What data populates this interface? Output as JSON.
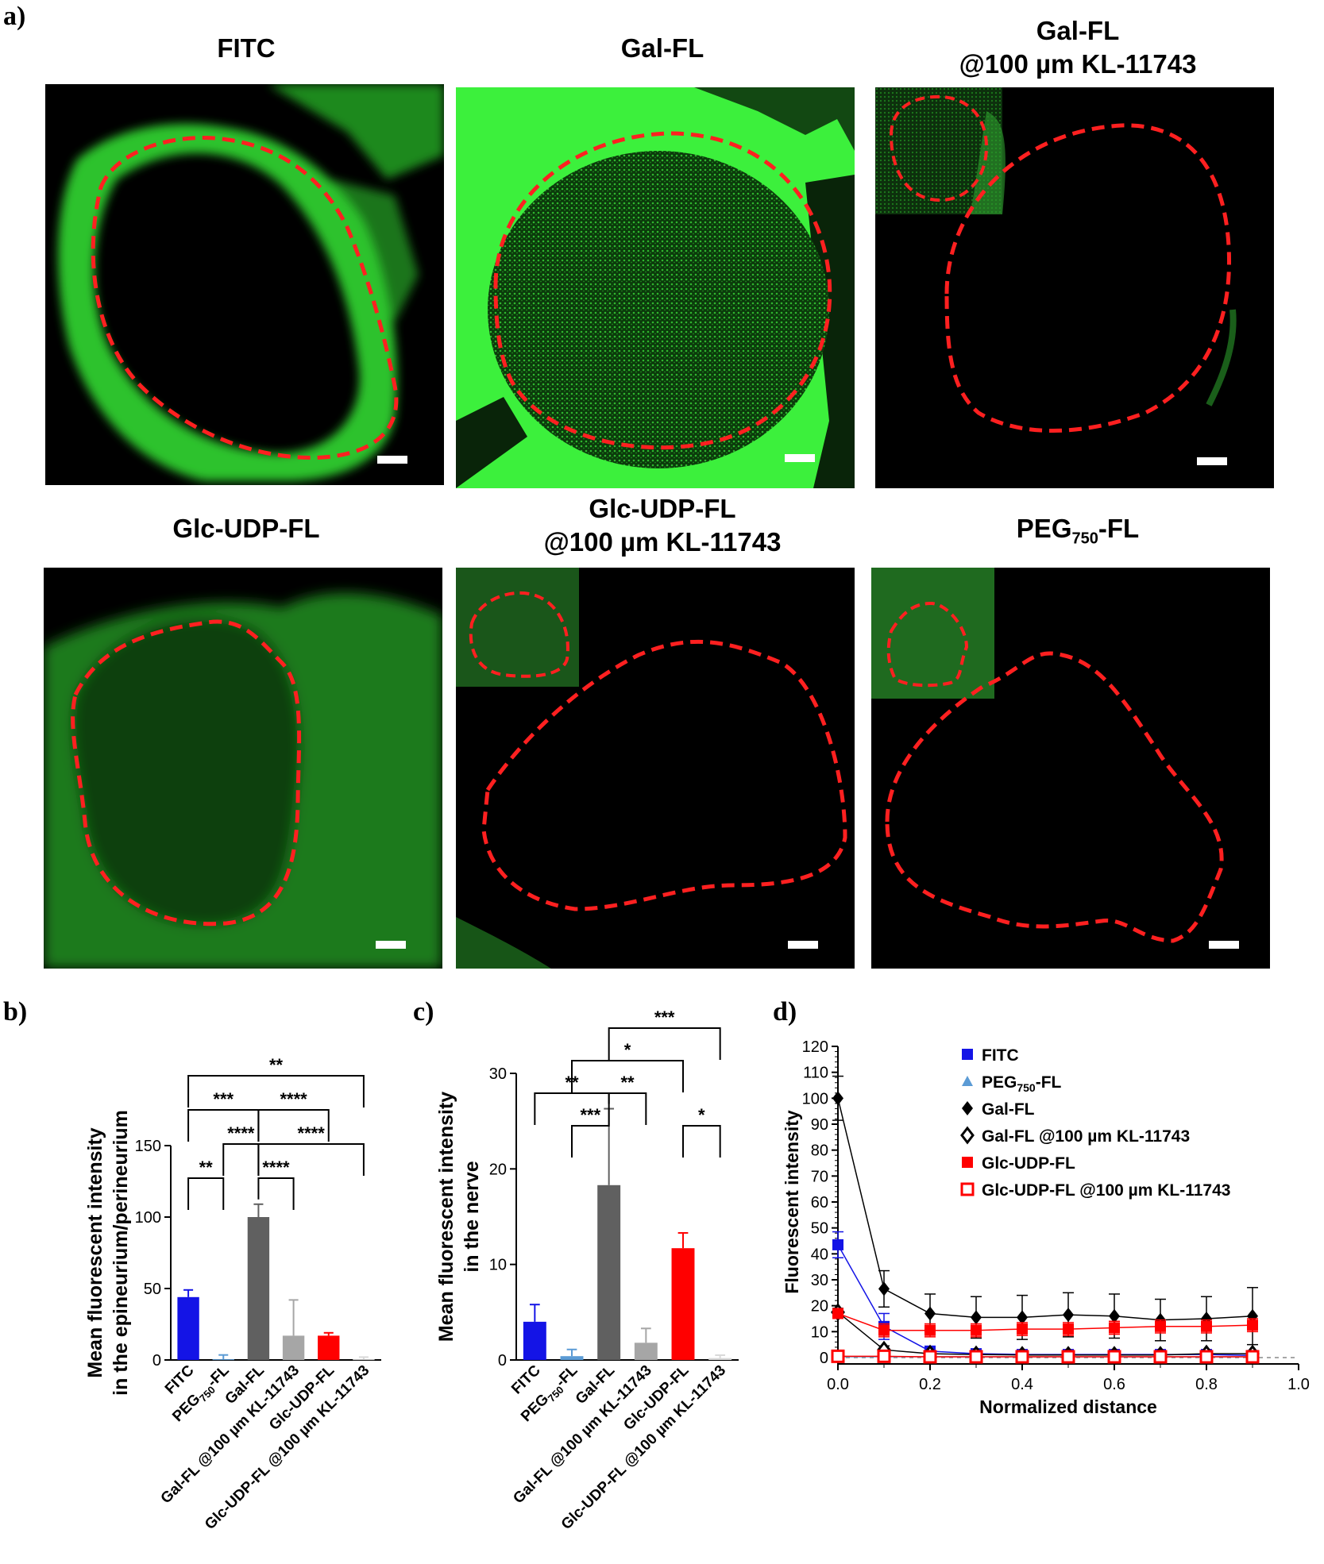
{
  "panels": {
    "a": "a)",
    "b": "b)",
    "c": "c)",
    "d": "d)"
  },
  "micrographs": [
    {
      "title1": "FITC",
      "title2": ""
    },
    {
      "title1": "Gal-FL",
      "title2": ""
    },
    {
      "title1": "Gal-FL",
      "title2": "@100 µm KL-11743"
    },
    {
      "title1": "Glc-UDP-FL",
      "title2": ""
    },
    {
      "title1": "Glc-UDP-FL",
      "title2": "@100 µm KL-11743"
    },
    {
      "title1": "PEG",
      "title1_sub": "750",
      "title1_suffix": "-FL",
      "title2": ""
    }
  ],
  "colors": {
    "FITC": "#1414e6",
    "PEG750-FL": "#5b9bd5",
    "Gal-FL": "#606060",
    "Gal-FL@KL": "#a6a6a6",
    "Glc-UDP-FL": "#ff0000",
    "Glc-UDP-FL@KL": "#d9d9d9",
    "outline": "#ff2020",
    "fluor": "#22d822"
  },
  "chart_data": [
    {
      "type": "bar",
      "id": "b",
      "ylabel1": "Mean fluorescent intensity",
      "ylabel2": "in the epineurium/perineurium",
      "ylim": [
        0,
        150
      ],
      "yticks": [
        "0",
        "50",
        "100",
        "150"
      ],
      "categories": [
        "FITC",
        "PEG750-FL",
        "Gal-FL",
        "Gal-FL @100 µm KL-11743",
        "Glc-UDP-FL",
        "Glc-UDP-FL @100 µm KL-11743"
      ],
      "cat_labels": [
        [
          "FITC"
        ],
        [
          "PEG",
          "750",
          "-FL"
        ],
        [
          "Gal-FL"
        ],
        [
          "Gal-FL @100 µm KL-11743"
        ],
        [
          "Glc-UDP-FL"
        ],
        [
          "Glc-UDP-FL @100 µm KL-11743"
        ]
      ],
      "values": [
        44,
        0.5,
        100,
        17,
        17,
        0.5
      ],
      "errors": [
        5,
        3,
        9,
        25,
        2,
        1.5
      ],
      "significance": [
        {
          "a": 0,
          "b": 1,
          "label": "**",
          "level": 1
        },
        {
          "a": 1,
          "b": 2,
          "label": "****",
          "level": 2
        },
        {
          "a": 2,
          "b": 3,
          "label": "****",
          "level": 1
        },
        {
          "a": 2,
          "b": 5,
          "label": "****",
          "level": 2
        },
        {
          "a": 0,
          "b": 2,
          "label": "***",
          "level": 3
        },
        {
          "a": 2,
          "b": 4,
          "label": "****",
          "level": 3
        },
        {
          "a": 0,
          "b": 5,
          "label": "**",
          "level": 4
        }
      ]
    },
    {
      "type": "bar",
      "id": "c",
      "ylabel1": "Mean fluorescent intensity",
      "ylabel2": "in the nerve",
      "ylim": [
        0,
        30
      ],
      "yticks": [
        "0",
        "10",
        "20",
        "30"
      ],
      "categories": [
        "FITC",
        "PEG750-FL",
        "Gal-FL",
        "Gal-FL @100 µm KL-11743",
        "Glc-UDP-FL",
        "Glc-UDP-FL @100 µm KL-11743"
      ],
      "cat_labels": [
        [
          "FITC"
        ],
        [
          "PEG",
          "750",
          "-FL"
        ],
        [
          "Gal-FL"
        ],
        [
          "Gal-FL @100 µm KL-11743"
        ],
        [
          "Glc-UDP-FL"
        ],
        [
          "Glc-UDP-FL @100 µm KL-11743"
        ]
      ],
      "values": [
        4,
        0.4,
        18.3,
        1.8,
        11.7,
        0.2
      ],
      "errors": [
        1.8,
        0.7,
        8,
        1.5,
        1.6,
        0.3
      ],
      "significance": [
        {
          "a": 1,
          "b": 2,
          "label": "***",
          "level": 1
        },
        {
          "a": 4,
          "b": 5,
          "label": "*",
          "level": 1
        },
        {
          "a": 0,
          "b": 2,
          "label": "**",
          "level": 2
        },
        {
          "a": 2,
          "b": 3,
          "label": "**",
          "level": 2
        },
        {
          "a": 1,
          "b": 4,
          "label": "*",
          "level": 3
        },
        {
          "a": 2,
          "b": 5,
          "label": "***",
          "level": 4
        }
      ]
    },
    {
      "type": "line",
      "id": "d",
      "xlabel": "Normalized distance",
      "ylabel": "Fluorescent intensity",
      "xlim": [
        0,
        1
      ],
      "ylim": [
        0,
        120
      ],
      "xticks": [
        "0.0",
        "0.2",
        "0.4",
        "0.6",
        "0.8",
        "1.0"
      ],
      "yticks": [
        "0",
        "10",
        "20",
        "30",
        "40",
        "50",
        "60",
        "70",
        "80",
        "90",
        "100",
        "110",
        "120"
      ],
      "x": [
        0,
        0.1,
        0.2,
        0.3,
        0.4,
        0.5,
        0.6,
        0.7,
        0.8,
        0.9
      ],
      "series": [
        {
          "name": "FITC",
          "marker": "square",
          "color": "#1414e6",
          "values": [
            43.5,
            12,
            2.5,
            1.5,
            1.2,
            1.2,
            1.2,
            1.2,
            1.2,
            0.8
          ],
          "errors": [
            5,
            5,
            1.5,
            1,
            1,
            1,
            1,
            1,
            1,
            1
          ]
        },
        {
          "name": "PEG",
          "name_sub": "750",
          "name_suffix": "-FL",
          "marker": "triangle",
          "color": "#5b9bd5",
          "values": [
            0.3,
            0.3,
            0.3,
            0.3,
            0.3,
            0.3,
            0.3,
            0.3,
            0.3,
            0.3
          ],
          "errors": [
            0.5,
            0.5,
            0.5,
            0.5,
            0.5,
            0.5,
            0.5,
            0.5,
            0.5,
            0.5
          ]
        },
        {
          "name": "Gal-FL",
          "marker": "diamond",
          "color": "#000000",
          "values": [
            100,
            26.5,
            17,
            15.5,
            15.5,
            16.5,
            16,
            14.5,
            15,
            16
          ],
          "errors": [
            8.5,
            7,
            7.5,
            8,
            8.5,
            8.5,
            8.5,
            8,
            8.5,
            11
          ]
        },
        {
          "name": "Gal-FL @100 µm KL-11743",
          "marker": "diamond-open",
          "color": "#000000",
          "values": [
            17.5,
            3,
            1.5,
            1.2,
            1,
            1,
            1,
            1,
            1.5,
            1.5
          ],
          "errors": [
            1.5,
            1.5,
            1,
            1,
            1,
            1,
            1,
            1,
            1,
            1
          ]
        },
        {
          "name": "Glc-UDP-FL",
          "marker": "square",
          "color": "#ff0000",
          "values": [
            17,
            10.5,
            10.5,
            10.5,
            11,
            11,
            11.5,
            12,
            12,
            12.5
          ],
          "errors": [
            1.5,
            2.5,
            2.5,
            2.5,
            2.5,
            2.5,
            2.5,
            2.5,
            2.5,
            2.5
          ]
        },
        {
          "name": "Glc-UDP-FL @100 µm KL-11743",
          "marker": "square-open",
          "color": "#ff0000",
          "values": [
            0.5,
            0.5,
            0.3,
            0.3,
            0.3,
            0.3,
            0.3,
            0.3,
            0.3,
            0.3
          ],
          "errors": [
            0.5,
            0.5,
            0.5,
            0.5,
            0.5,
            0.5,
            0.5,
            0.5,
            0.5,
            0.5
          ]
        }
      ]
    }
  ]
}
